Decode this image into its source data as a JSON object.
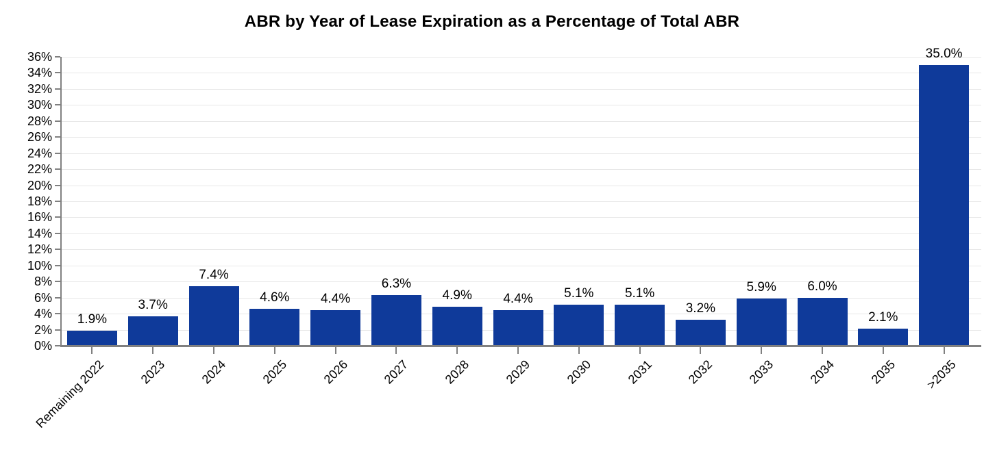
{
  "chart_data": {
    "type": "bar",
    "title": "ABR by Year of Lease Expiration as a Percentage of Total ABR",
    "categories": [
      "Remaining 2022",
      "2023",
      "2024",
      "2025",
      "2026",
      "2027",
      "2028",
      "2029",
      "2030",
      "2031",
      "2032",
      "2033",
      "2034",
      "2035",
      ">2035"
    ],
    "values": [
      1.9,
      3.7,
      7.4,
      4.6,
      4.4,
      6.3,
      4.9,
      4.4,
      5.1,
      5.1,
      3.2,
      5.9,
      6.0,
      2.1,
      35.0
    ],
    "value_labels": [
      "1.9%",
      "3.7%",
      "7.4%",
      "4.6%",
      "4.4%",
      "6.3%",
      "4.9%",
      "4.4%",
      "5.1%",
      "5.1%",
      "3.2%",
      "5.9%",
      "6.0%",
      "2.1%",
      "35.0%"
    ],
    "xlabel": "",
    "ylabel": "",
    "ylim": [
      0,
      36
    ],
    "ytick_step": 2,
    "ytick_suffix": "%",
    "grid": true,
    "legend": "none",
    "bar_color": "#0f3a9a",
    "axis_color": "#808080",
    "gridline_color": "#e7e7e7",
    "text_color": "#000000"
  }
}
